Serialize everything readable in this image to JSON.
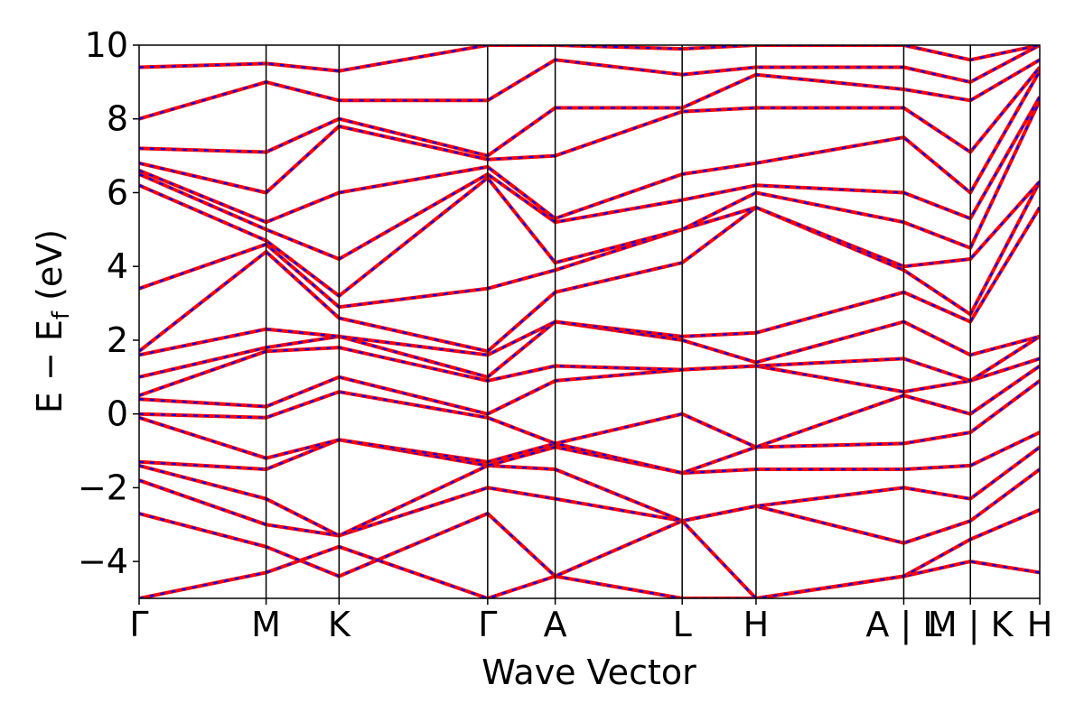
{
  "chart_data": {
    "type": "line",
    "xlabel": "Wave Vector",
    "ylabel": {
      "main": "E − E",
      "sub": "f",
      "unit": " (eV)"
    },
    "ylim": [
      -5,
      10
    ],
    "yticks": [
      -4,
      -2,
      0,
      2,
      4,
      6,
      8,
      10
    ],
    "ytick_labels": [
      "−4",
      "−2",
      "0",
      "2",
      "4",
      "6",
      "8",
      "10"
    ],
    "xlim": [
      0,
      1
    ],
    "kpoint_positions": [
      0.0,
      0.141,
      0.222,
      0.387,
      0.462,
      0.603,
      0.685,
      0.849,
      0.923,
      1.0
    ],
    "kpoint_labels": [
      "Γ",
      "M",
      "K",
      "Γ",
      "A",
      "L",
      "H",
      "A | L",
      "M | K",
      "H"
    ],
    "series_colors": {
      "primary": "#ff0000",
      "overlay": "#0000ff"
    },
    "bands": [
      [
        -5.0,
        -4.3,
        -3.6,
        -5.0,
        -4.4,
        -5.0,
        -5.0,
        -4.4,
        -4.0,
        -4.3
      ],
      [
        -2.7,
        -3.6,
        -4.4,
        -2.7,
        -4.4,
        -2.9,
        -5.0,
        -4.4,
        -3.4,
        -2.6
      ],
      [
        -1.8,
        -3.0,
        -3.3,
        -2.0,
        -2.3,
        -2.9,
        -2.5,
        -3.5,
        -2.9,
        -1.5
      ],
      [
        -1.4,
        -2.3,
        -3.3,
        -1.4,
        -1.5,
        -2.9,
        -2.5,
        -2.0,
        -2.3,
        -0.9
      ],
      [
        -1.3,
        -1.5,
        -0.7,
        -1.4,
        -0.9,
        -1.6,
        -1.5,
        -1.5,
        -1.4,
        -0.5
      ],
      [
        -0.1,
        -1.2,
        -0.7,
        -1.3,
        -0.8,
        -1.6,
        -0.9,
        -0.8,
        -0.5,
        0.9
      ],
      [
        0.0,
        -0.1,
        0.6,
        -0.1,
        -0.8,
        0.0,
        -0.9,
        0.5,
        0.0,
        1.3
      ],
      [
        0.4,
        0.2,
        1.0,
        0.0,
        0.9,
        1.2,
        1.3,
        0.6,
        0.9,
        1.5
      ],
      [
        0.5,
        1.7,
        1.8,
        0.9,
        1.3,
        1.2,
        1.3,
        1.5,
        0.9,
        2.1
      ],
      [
        1.0,
        1.8,
        2.1,
        1.0,
        2.5,
        2.0,
        1.4,
        2.5,
        1.6,
        2.1
      ],
      [
        1.6,
        2.3,
        2.1,
        1.6,
        2.5,
        2.1,
        2.2,
        3.3,
        2.5,
        5.6
      ],
      [
        1.7,
        4.4,
        2.6,
        1.7,
        3.3,
        4.1,
        5.6,
        3.9,
        2.7,
        6.3
      ],
      [
        3.4,
        4.6,
        2.9,
        3.4,
        3.9,
        5.0,
        5.6,
        4.0,
        4.2,
        6.3
      ],
      [
        6.2,
        4.7,
        3.2,
        6.4,
        4.1,
        5.0,
        6.0,
        5.2,
        4.5,
        8.5
      ],
      [
        6.5,
        5.0,
        4.2,
        6.5,
        5.2,
        5.8,
        6.2,
        6.0,
        5.3,
        8.6
      ],
      [
        6.6,
        5.2,
        6.0,
        6.7,
        5.3,
        6.5,
        6.8,
        7.5,
        6.0,
        9.3
      ],
      [
        6.8,
        6.0,
        7.8,
        6.9,
        7.0,
        8.2,
        8.3,
        8.3,
        7.1,
        9.4
      ],
      [
        7.2,
        7.1,
        8.0,
        7.0,
        8.3,
        8.3,
        9.2,
        8.8,
        8.5,
        9.6
      ],
      [
        8.0,
        9.0,
        8.5,
        8.5,
        9.6,
        9.2,
        9.4,
        9.4,
        9.0,
        10.0
      ],
      [
        9.4,
        9.5,
        9.3,
        10.0,
        10.0,
        9.9,
        10.0,
        10.0,
        9.6,
        10.0
      ]
    ]
  }
}
